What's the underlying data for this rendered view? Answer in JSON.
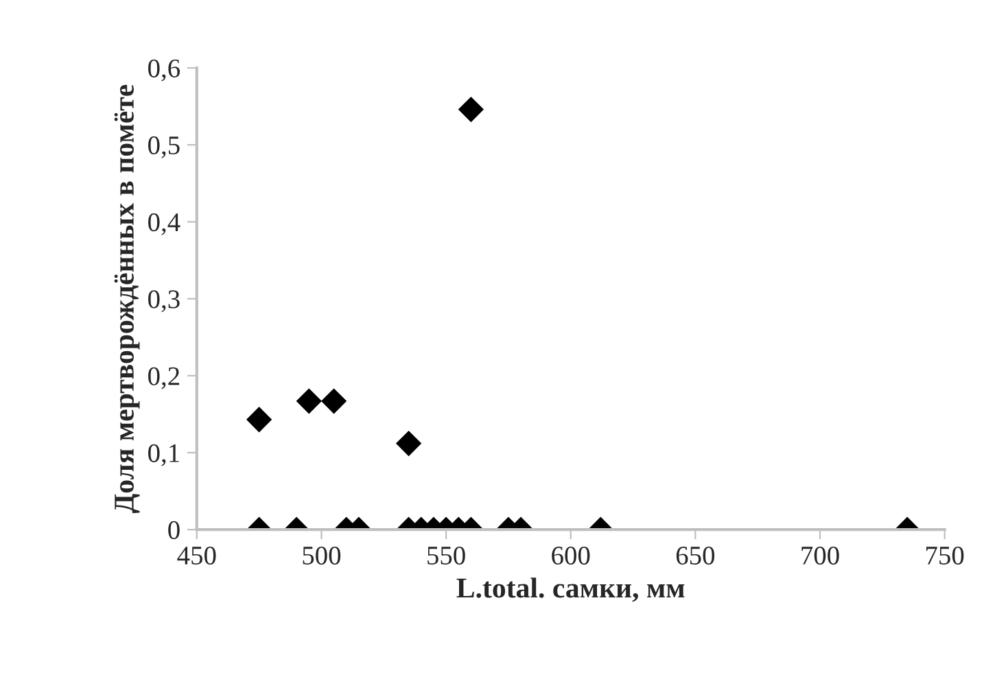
{
  "chart_data": {
    "type": "scatter",
    "xlabel": "L.total. самки, мм",
    "ylabel": "Доля мертворождённых в помёте",
    "x": [
      475,
      490,
      510,
      515,
      535,
      540,
      545,
      550,
      555,
      560,
      575,
      580,
      612,
      735,
      475,
      495,
      505,
      535,
      560
    ],
    "series": [
      {
        "color": "#000000",
        "values": [
          0,
          0,
          0,
          0,
          0,
          0,
          0,
          0,
          0,
          0,
          0,
          0,
          0,
          0,
          0.143,
          0.167,
          0.167,
          0.112,
          0.546
        ]
      }
    ],
    "marker": "diamond",
    "grid": false,
    "xlim": [
      450,
      750
    ],
    "xticks": [
      450,
      500,
      550,
      600,
      650,
      700,
      750
    ],
    "ylim": [
      0,
      0.6
    ],
    "yticks": [
      {
        "value": 0,
        "label": "0"
      },
      {
        "value": 0.1,
        "label": "0,1"
      },
      {
        "value": 0.2,
        "label": "0,2"
      },
      {
        "value": 0.3,
        "label": "0,3"
      },
      {
        "value": 0.4,
        "label": "0,4"
      },
      {
        "value": 0.5,
        "label": "0,5"
      },
      {
        "value": 0.6,
        "label": "0,6"
      }
    ]
  }
}
